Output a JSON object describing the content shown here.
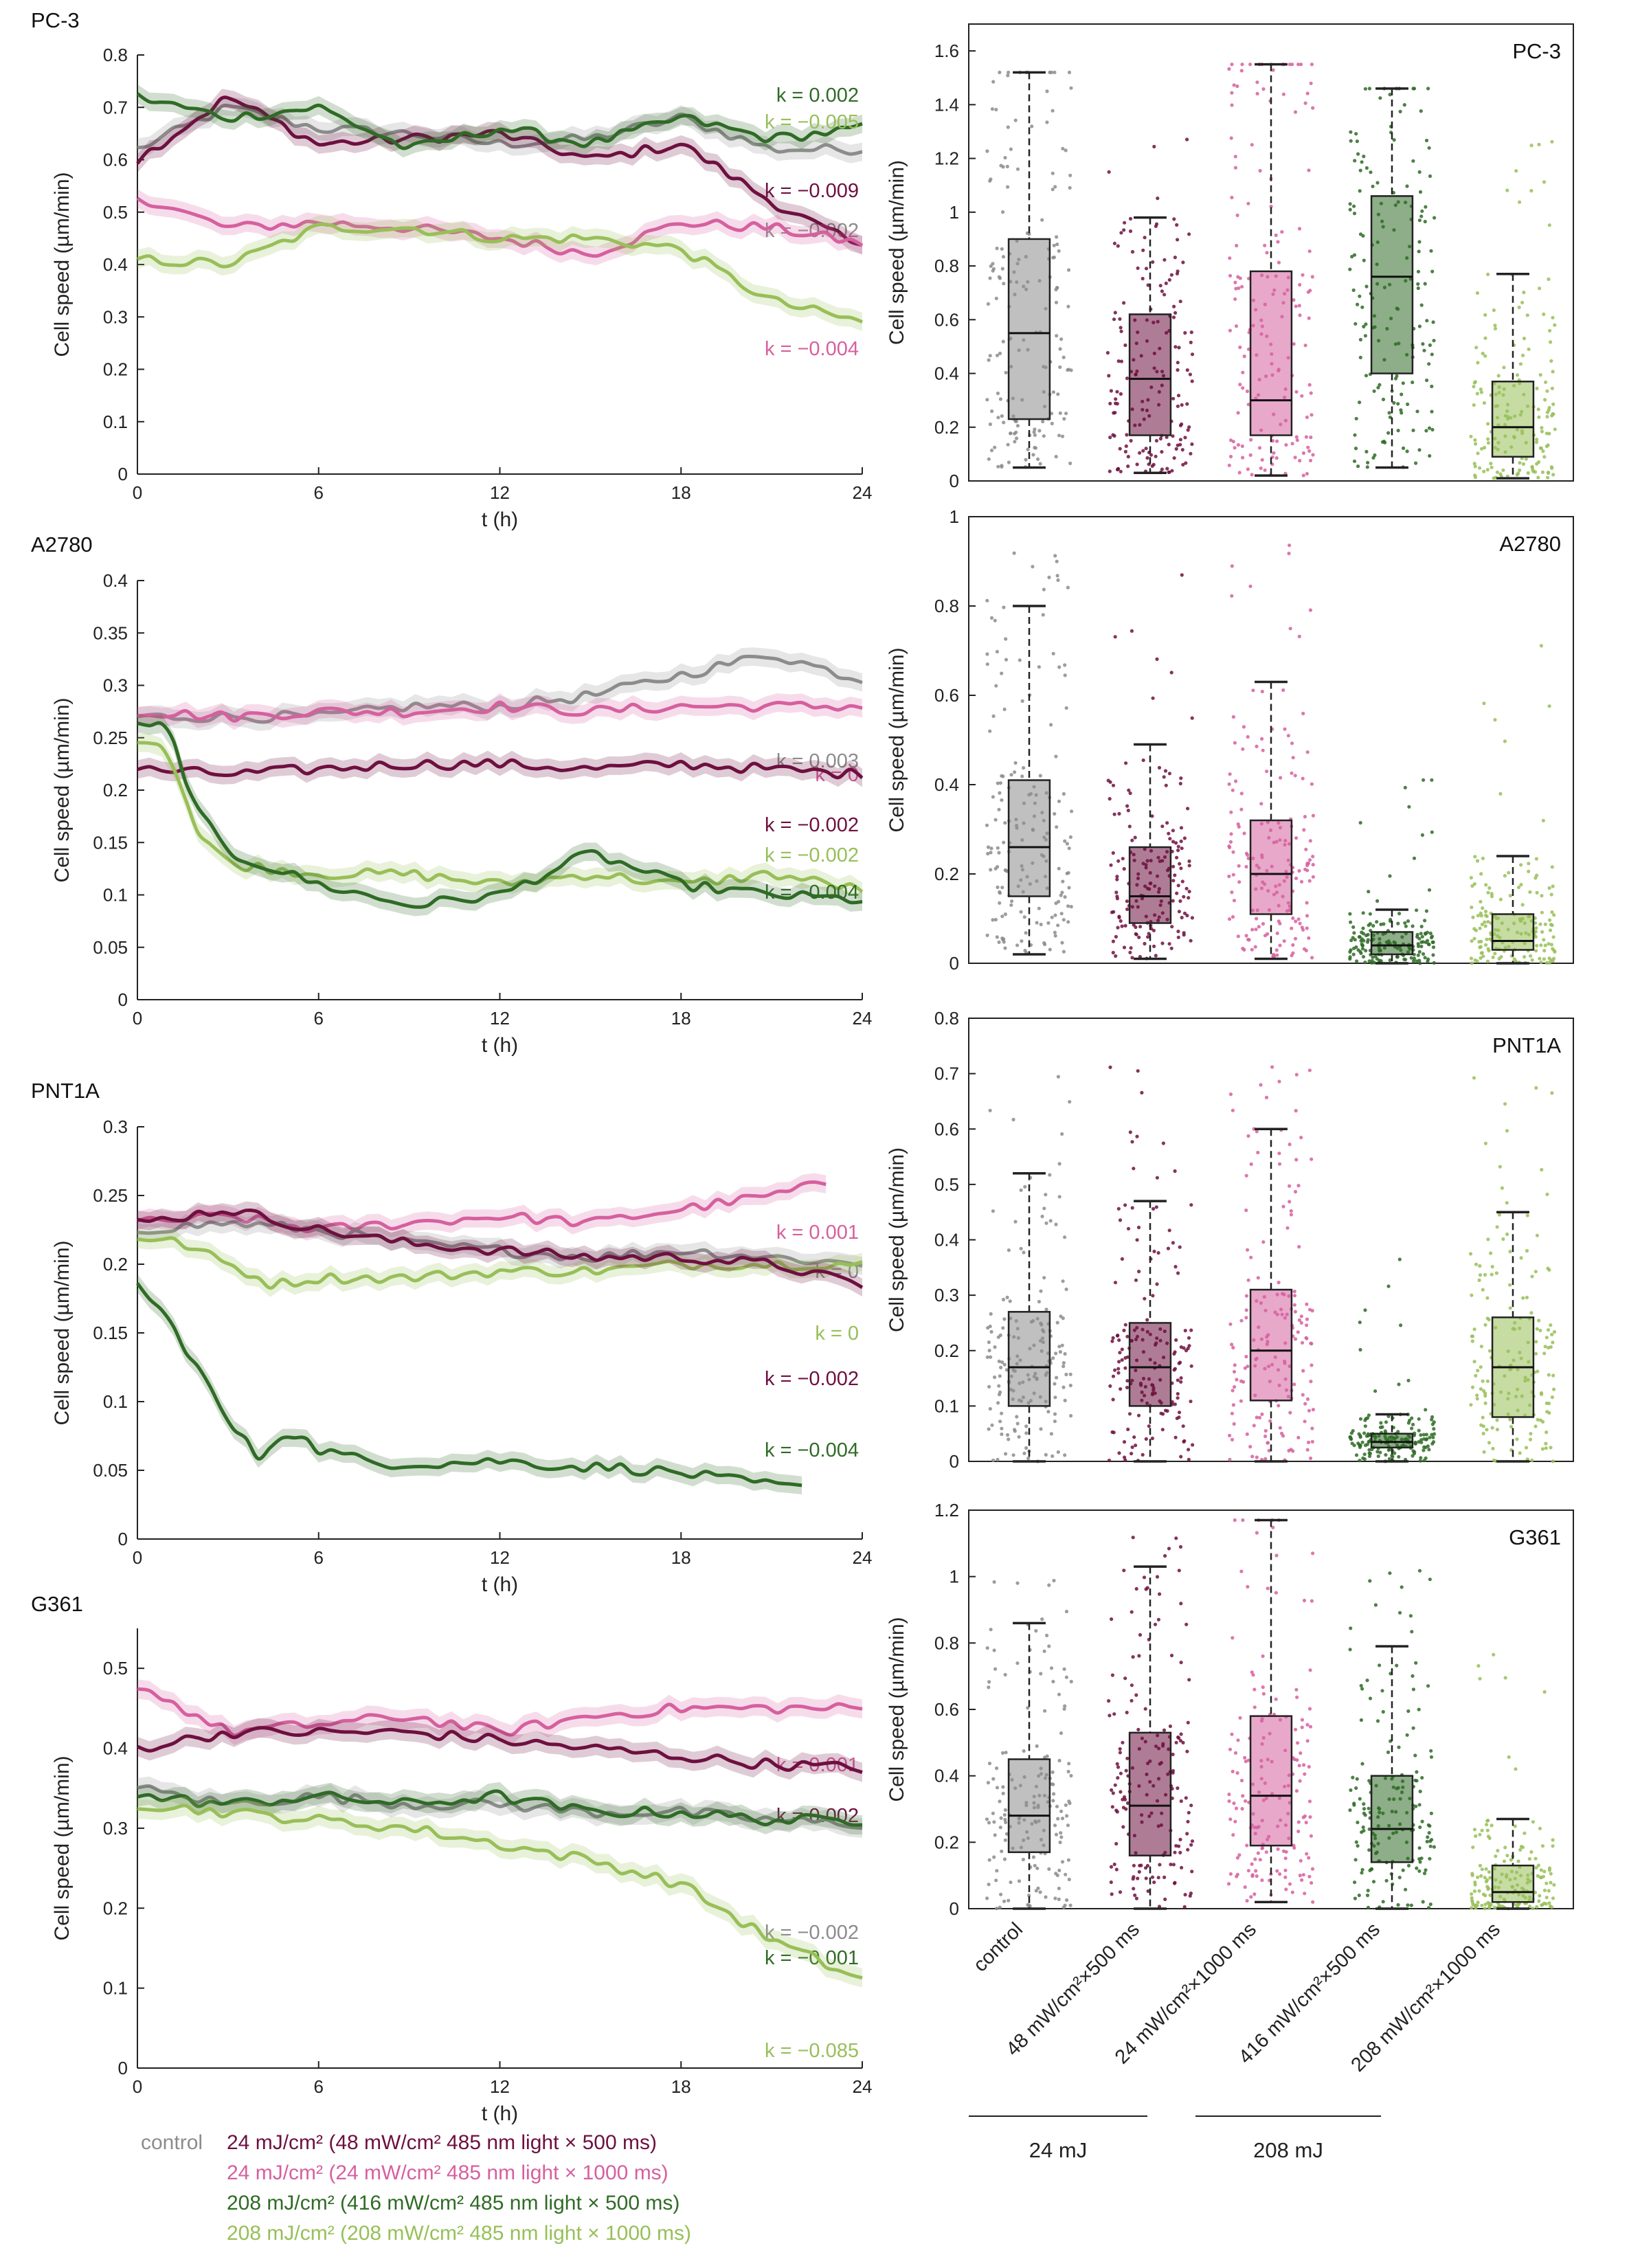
{
  "colors": {
    "control": "#8c8c8c",
    "mj24_500": "#6e1040",
    "mj24_1000": "#d6609f",
    "mj208_500": "#2f6b26",
    "mj208_1000": "#98bf58",
    "axis": "#222222"
  },
  "legend": {
    "control": "control",
    "items": [
      {
        "key": "mj24_500",
        "label": "24 mJ/cm² (48 mW/cm² 485 nm light × 500 ms)"
      },
      {
        "key": "mj24_1000",
        "label": "24 mJ/cm² (24 mW/cm² 485 nm light × 1000 ms)"
      },
      {
        "key": "mj208_500",
        "label": "208 mJ/cm² (416 mW/cm² 485 nm light × 500 ms)"
      },
      {
        "key": "mj208_1000",
        "label": "208 mJ/cm² (208 mW/cm² 485 nm light × 1000 ms)"
      }
    ]
  },
  "box_categories": [
    "control",
    "48 mW/cm²×500 ms",
    "24 mW/cm²×1000 ms",
    "416 mW/cm²×500 ms",
    "208 mW/cm²×1000 ms"
  ],
  "groups": [
    {
      "label": "24 mJ"
    },
    {
      "label": "208 mJ"
    }
  ],
  "chart_data": [
    {
      "type": "line",
      "panel": "PC-3",
      "title": "PC-3",
      "xlabel": "t (h)",
      "ylabel": "Cell speed (µm/min)",
      "xlim": [
        0,
        24
      ],
      "ylim": [
        0,
        0.8
      ],
      "xticks": [
        0,
        6,
        12,
        18,
        24
      ],
      "yticks": [
        0,
        0.1,
        0.2,
        0.3,
        0.4,
        0.5,
        0.6,
        0.7,
        0.8
      ],
      "series": [
        {
          "key": "control",
          "name": "control",
          "x": [
            0,
            3,
            6,
            9,
            12,
            15,
            18,
            21,
            24
          ],
          "values": [
            0.62,
            0.7,
            0.66,
            0.65,
            0.63,
            0.64,
            0.68,
            0.62,
            0.62
          ],
          "k": "k = −0.002"
        },
        {
          "key": "mj24_500",
          "name": "24 mJ/cm² × 500 ms",
          "x": [
            0,
            3,
            6,
            9,
            12,
            15,
            18,
            21,
            24
          ],
          "values": [
            0.6,
            0.72,
            0.63,
            0.64,
            0.65,
            0.6,
            0.63,
            0.52,
            0.43
          ],
          "k": "k = −0.009"
        },
        {
          "key": "mj24_1000",
          "name": "24 mJ/cm² × 1000 ms",
          "x": [
            0,
            3,
            6,
            9,
            12,
            15,
            18,
            21,
            24
          ],
          "values": [
            0.53,
            0.47,
            0.48,
            0.47,
            0.45,
            0.42,
            0.48,
            0.47,
            0.44
          ],
          "k": "k = −0.004"
        },
        {
          "key": "mj208_500",
          "name": "208 mJ/cm² × 500 ms",
          "x": [
            0,
            3,
            6,
            9,
            12,
            15,
            18,
            21,
            24
          ],
          "values": [
            0.72,
            0.68,
            0.7,
            0.62,
            0.66,
            0.63,
            0.68,
            0.64,
            0.66
          ],
          "k": "k = 0.002"
        },
        {
          "key": "mj208_1000",
          "name": "208 mJ/cm² × 1000 ms",
          "x": [
            0,
            3,
            6,
            9,
            12,
            15,
            18,
            21,
            24
          ],
          "values": [
            0.41,
            0.4,
            0.47,
            0.47,
            0.45,
            0.45,
            0.43,
            0.33,
            0.29
          ],
          "k": "k = −0.005"
        }
      ]
    },
    {
      "type": "box",
      "panel": "PC-3",
      "title": "PC-3",
      "ylabel": "Cell speed (µm/min)",
      "ylim": [
        0,
        1.7
      ],
      "yticks": [
        0,
        0.2,
        0.4,
        0.6,
        0.8,
        1,
        1.2,
        1.4,
        1.6
      ],
      "boxes": [
        {
          "key": "control",
          "q1": 0.23,
          "median": 0.55,
          "q3": 0.9,
          "whisker_low": 0.05,
          "whisker_high": 1.52,
          "max": 1.52
        },
        {
          "key": "mj24_500",
          "q1": 0.17,
          "median": 0.38,
          "q3": 0.62,
          "whisker_low": 0.03,
          "whisker_high": 0.98,
          "max": 1.3
        },
        {
          "key": "mj24_1000",
          "q1": 0.17,
          "median": 0.3,
          "q3": 0.78,
          "whisker_low": 0.02,
          "whisker_high": 1.55,
          "max": 1.55
        },
        {
          "key": "mj208_500",
          "q1": 0.4,
          "median": 0.76,
          "q3": 1.06,
          "whisker_low": 0.05,
          "whisker_high": 1.46,
          "max": 1.46
        },
        {
          "key": "mj208_1000",
          "q1": 0.09,
          "median": 0.2,
          "q3": 0.37,
          "whisker_low": 0.01,
          "whisker_high": 0.77,
          "max": 1.36
        }
      ]
    },
    {
      "type": "line",
      "panel": "A2780",
      "title": "A2780",
      "xlabel": "t (h)",
      "ylabel": "Cell speed (µm/min)",
      "xlim": [
        0,
        24
      ],
      "ylim": [
        0,
        0.4
      ],
      "xticks": [
        0,
        6,
        12,
        18,
        24
      ],
      "yticks": [
        0,
        0.05,
        0.1,
        0.15,
        0.2,
        0.25,
        0.3,
        0.35,
        0.4
      ],
      "series": [
        {
          "key": "control",
          "name": "control",
          "x": [
            0,
            3,
            6,
            9,
            12,
            15,
            18,
            21,
            24
          ],
          "values": [
            0.27,
            0.27,
            0.27,
            0.28,
            0.28,
            0.29,
            0.31,
            0.33,
            0.305
          ],
          "k": "k = 0.003"
        },
        {
          "key": "mj24_1000",
          "name": "24 mJ/cm² × 1000 ms",
          "x": [
            0,
            3,
            6,
            9,
            12,
            15,
            18,
            21,
            24
          ],
          "values": [
            0.275,
            0.27,
            0.275,
            0.275,
            0.28,
            0.275,
            0.28,
            0.28,
            0.28
          ],
          "k": "k = 0"
        },
        {
          "key": "mj24_500",
          "name": "24 mJ/cm² × 500 ms",
          "x": [
            0,
            3,
            6,
            9,
            12,
            15,
            18,
            21,
            24
          ],
          "values": [
            0.22,
            0.215,
            0.22,
            0.225,
            0.225,
            0.22,
            0.225,
            0.22,
            0.215
          ],
          "k": "k = −0.002"
        },
        {
          "key": "mj208_1000",
          "name": "208 mJ/cm² × 1000 ms",
          "x": [
            0,
            1,
            2,
            3,
            6,
            9,
            12,
            15,
            18,
            21,
            24
          ],
          "values": [
            0.25,
            0.24,
            0.16,
            0.13,
            0.12,
            0.12,
            0.11,
            0.12,
            0.11,
            0.12,
            0.105
          ],
          "k": "k = −0.002"
        },
        {
          "key": "mj208_500",
          "name": "208 mJ/cm² × 500 ms",
          "x": [
            0,
            1,
            2,
            3,
            6,
            9,
            12,
            15,
            18,
            21,
            24
          ],
          "values": [
            0.26,
            0.26,
            0.18,
            0.14,
            0.11,
            0.09,
            0.1,
            0.14,
            0.11,
            0.1,
            0.095
          ],
          "k": "k = −0.004"
        }
      ]
    },
    {
      "type": "box",
      "panel": "A2780",
      "title": "A2780",
      "ylabel": "Cell speed (µm/min)",
      "ylim": [
        0,
        1
      ],
      "yticks": [
        0,
        0.2,
        0.4,
        0.6,
        0.8,
        1
      ],
      "boxes": [
        {
          "key": "control",
          "q1": 0.15,
          "median": 0.26,
          "q3": 0.41,
          "whisker_low": 0.02,
          "whisker_high": 0.8,
          "max": 0.92
        },
        {
          "key": "mj24_500",
          "q1": 0.09,
          "median": 0.15,
          "q3": 0.26,
          "whisker_low": 0.01,
          "whisker_high": 0.49,
          "max": 0.92
        },
        {
          "key": "mj24_1000",
          "q1": 0.11,
          "median": 0.2,
          "q3": 0.32,
          "whisker_low": 0.01,
          "whisker_high": 0.63,
          "max": 0.95
        },
        {
          "key": "mj208_500",
          "q1": 0.02,
          "median": 0.04,
          "q3": 0.07,
          "whisker_low": 0.0,
          "whisker_high": 0.12,
          "max": 0.5
        },
        {
          "key": "mj208_1000",
          "q1": 0.03,
          "median": 0.05,
          "q3": 0.11,
          "whisker_low": 0.0,
          "whisker_high": 0.24,
          "max": 0.82
        }
      ]
    },
    {
      "type": "line",
      "panel": "PNT1A",
      "title": "PNT1A",
      "xlabel": "t (h)",
      "ylabel": "Cell speed (µm/min)",
      "xlim": [
        0,
        24
      ],
      "ylim": [
        0,
        0.3
      ],
      "xticks": [
        0,
        6,
        12,
        18,
        24
      ],
      "yticks": [
        0,
        0.05,
        0.1,
        0.15,
        0.2,
        0.25,
        0.3
      ],
      "series": [
        {
          "key": "mj24_1000",
          "name": "24 mJ/cm² × 1000 ms",
          "x": [
            0,
            3,
            6,
            9,
            12,
            15,
            18,
            21,
            23
          ],
          "values": [
            0.23,
            0.235,
            0.225,
            0.23,
            0.235,
            0.23,
            0.24,
            0.25,
            0.26
          ],
          "k": "k = 0.001"
        },
        {
          "key": "control",
          "name": "control",
          "x": [
            0,
            3,
            6,
            9,
            12,
            15,
            18,
            21,
            24
          ],
          "values": [
            0.225,
            0.23,
            0.225,
            0.215,
            0.21,
            0.205,
            0.21,
            0.205,
            0.2
          ],
          "k": "k = 0"
        },
        {
          "key": "mj208_1000",
          "name": "208 mJ/cm² × 1000 ms",
          "x": [
            0,
            1.5,
            3,
            4.5,
            6,
            9,
            12,
            15,
            18,
            21,
            24
          ],
          "values": [
            0.22,
            0.215,
            0.2,
            0.185,
            0.19,
            0.19,
            0.195,
            0.195,
            0.2,
            0.2,
            0.2
          ],
          "k": "k = 0"
        },
        {
          "key": "mj24_500",
          "name": "24 mJ/cm² × 500 ms",
          "x": [
            0,
            3,
            6,
            9,
            12,
            15,
            18,
            21,
            24
          ],
          "values": [
            0.23,
            0.24,
            0.225,
            0.215,
            0.21,
            0.205,
            0.205,
            0.2,
            0.185
          ],
          "k": "k = −0.002"
        },
        {
          "key": "mj208_500",
          "name": "208 mJ/cm² × 500 ms",
          "x": [
            0,
            1,
            2,
            3,
            4,
            5,
            6,
            8,
            10,
            12,
            14,
            16,
            18,
            20,
            22
          ],
          "values": [
            0.185,
            0.16,
            0.125,
            0.085,
            0.06,
            0.08,
            0.065,
            0.055,
            0.055,
            0.057,
            0.053,
            0.052,
            0.048,
            0.042,
            0.037
          ],
          "k": "k = −0.004"
        }
      ]
    },
    {
      "type": "box",
      "panel": "PNT1A",
      "title": "PNT1A",
      "ylabel": "Cell speed (µm/min)",
      "ylim": [
        0,
        0.8
      ],
      "yticks": [
        0,
        0.1,
        0.2,
        0.3,
        0.4,
        0.5,
        0.6,
        0.7,
        0.8
      ],
      "boxes": [
        {
          "key": "control",
          "q1": 0.1,
          "median": 0.17,
          "q3": 0.27,
          "whisker_low": 0.0,
          "whisker_high": 0.52,
          "max": 0.7
        },
        {
          "key": "mj24_500",
          "q1": 0.1,
          "median": 0.17,
          "q3": 0.25,
          "whisker_low": 0.0,
          "whisker_high": 0.47,
          "max": 0.72
        },
        {
          "key": "mj24_1000",
          "q1": 0.11,
          "median": 0.2,
          "q3": 0.31,
          "whisker_low": 0.0,
          "whisker_high": 0.6,
          "max": 0.72
        },
        {
          "key": "mj208_500",
          "q1": 0.025,
          "median": 0.035,
          "q3": 0.05,
          "whisker_low": 0.0,
          "whisker_high": 0.085,
          "max": 0.37
        },
        {
          "key": "mj208_1000",
          "q1": 0.08,
          "median": 0.17,
          "q3": 0.26,
          "whisker_low": 0.0,
          "whisker_high": 0.45,
          "max": 0.72
        }
      ]
    },
    {
      "type": "line",
      "panel": "G361",
      "title": "G361",
      "xlabel": "t (h)",
      "ylabel": "Cell speed (µm/min)",
      "xlim": [
        0,
        24
      ],
      "ylim": [
        0,
        0.55
      ],
      "xticks": [
        0,
        6,
        12,
        18,
        24
      ],
      "yticks": [
        0,
        0.1,
        0.2,
        0.3,
        0.4,
        0.5
      ],
      "series": [
        {
          "key": "mj24_1000",
          "name": "24 mJ/cm² × 1000 ms",
          "x": [
            0,
            3,
            6,
            9,
            12,
            15,
            18,
            21,
            24
          ],
          "values": [
            0.48,
            0.42,
            0.43,
            0.44,
            0.42,
            0.44,
            0.45,
            0.45,
            0.45
          ],
          "k": "k = 0.001"
        },
        {
          "key": "mj24_500",
          "name": "24 mJ/cm² × 500 ms",
          "x": [
            0,
            3,
            6,
            9,
            12,
            15,
            18,
            21,
            24
          ],
          "values": [
            0.4,
            0.42,
            0.42,
            0.42,
            0.41,
            0.4,
            0.39,
            0.38,
            0.375
          ],
          "k": "k = 0.002"
        },
        {
          "key": "control",
          "name": "control",
          "x": [
            0,
            3,
            6,
            9,
            12,
            15,
            18,
            21,
            24
          ],
          "values": [
            0.35,
            0.33,
            0.34,
            0.33,
            0.33,
            0.32,
            0.32,
            0.31,
            0.305
          ],
          "k": "k = −0.002"
        },
        {
          "key": "mj208_500",
          "name": "208 mJ/cm² × 500 ms",
          "x": [
            0,
            3,
            6,
            9,
            12,
            15,
            18,
            21,
            24
          ],
          "values": [
            0.34,
            0.33,
            0.34,
            0.33,
            0.34,
            0.32,
            0.32,
            0.31,
            0.31
          ],
          "k": "k = −0.001"
        },
        {
          "key": "mj208_1000",
          "name": "208 mJ/cm² × 1000 ms",
          "x": [
            0,
            3,
            6,
            9,
            12,
            15,
            18,
            21,
            24
          ],
          "values": [
            0.33,
            0.32,
            0.31,
            0.3,
            0.28,
            0.26,
            0.23,
            0.16,
            0.11
          ],
          "k": "k = −0.085"
        }
      ]
    },
    {
      "type": "box",
      "panel": "G361",
      "title": "G361",
      "ylabel": "Cell speed (µm/min)",
      "ylim": [
        0,
        1.2
      ],
      "yticks": [
        0,
        0.2,
        0.4,
        0.6,
        0.8,
        1,
        1.2
      ],
      "boxes": [
        {
          "key": "control",
          "q1": 0.17,
          "median": 0.28,
          "q3": 0.45,
          "whisker_low": 0.0,
          "whisker_high": 0.86,
          "max": 1.05
        },
        {
          "key": "mj24_500",
          "q1": 0.16,
          "median": 0.31,
          "q3": 0.53,
          "whisker_low": 0.0,
          "whisker_high": 1.03,
          "max": 1.13
        },
        {
          "key": "mj24_1000",
          "q1": 0.19,
          "median": 0.34,
          "q3": 0.58,
          "whisker_low": 0.02,
          "whisker_high": 1.17,
          "max": 1.17
        },
        {
          "key": "mj208_500",
          "q1": 0.14,
          "median": 0.24,
          "q3": 0.4,
          "whisker_low": 0.0,
          "whisker_high": 0.79,
          "max": 1.02
        },
        {
          "key": "mj208_1000",
          "q1": 0.02,
          "median": 0.05,
          "q3": 0.13,
          "whisker_low": 0.0,
          "whisker_high": 0.27,
          "max": 0.8
        }
      ]
    }
  ]
}
